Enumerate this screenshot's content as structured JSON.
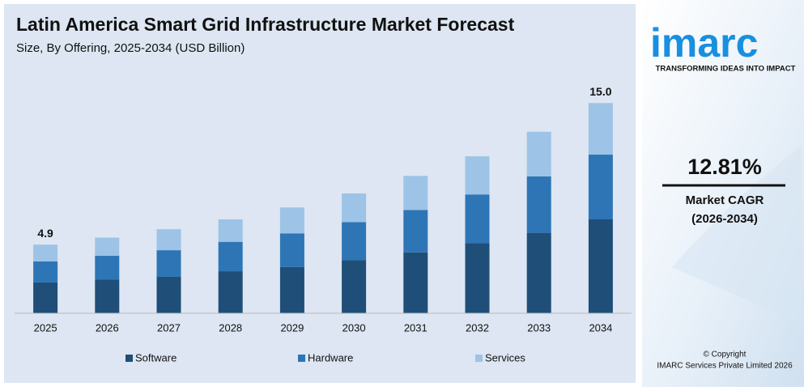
{
  "chart_data": {
    "type": "stacked_bar",
    "title": "Latin America Smart Grid Infrastructure Market Forecast",
    "subtitle": "Size, By Offering, 2025-2034 (USD Billion)",
    "categories": [
      "2025",
      "2026",
      "2027",
      "2028",
      "2029",
      "2030",
      "2031",
      "2032",
      "2033",
      "2034"
    ],
    "series": [
      {
        "name": "Software",
        "color": "#1f4e79",
        "values": [
          2.2,
          2.4,
          2.6,
          3.0,
          3.3,
          3.8,
          4.34,
          5.0,
          5.74,
          6.7
        ]
      },
      {
        "name": "Hardware",
        "color": "#2e75b6",
        "values": [
          1.5,
          1.7,
          1.9,
          2.1,
          2.4,
          2.7,
          3.03,
          3.48,
          4.03,
          4.62
        ]
      },
      {
        "name": "Services",
        "color": "#9dc3e6",
        "values": [
          1.2,
          1.3,
          1.5,
          1.6,
          1.85,
          2.05,
          2.43,
          2.72,
          3.18,
          3.68
        ]
      }
    ],
    "annotations": [
      {
        "text": "4.9",
        "x": "2025",
        "value": 4.9
      },
      {
        "text": "15.0",
        "x": "2034",
        "value": 15
      }
    ],
    "ylim": [
      0,
      16
    ],
    "legend": "bottom"
  },
  "sidebar": {
    "logo": "imarc",
    "tagline": "TRANSFORMING IDEAS INTO IMPACT",
    "cagr": "12.81%",
    "cagr_label": "Market CAGR",
    "cagr_period": "(2026-2034)",
    "copyright": "© Copyright",
    "company": "IMARC Services Private Limited 2026"
  }
}
